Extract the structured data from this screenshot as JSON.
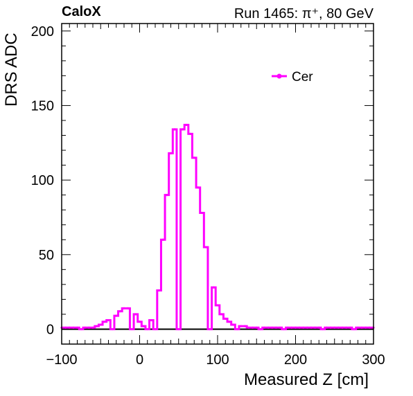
{
  "header": {
    "brand": "CaloX",
    "run_info": "Run 1465:   π⁺, 80 GeV"
  },
  "colors": {
    "series": "#ff00ff",
    "axis": "#000000",
    "zero_line": "#000000"
  },
  "chart_data": {
    "type": "line",
    "title": "",
    "xlabel": "Measured Z [cm]",
    "ylabel": "DRS ADC",
    "xlim": [
      -100,
      300
    ],
    "ylim": [
      -10,
      205
    ],
    "x_ticks": [
      -100,
      0,
      100,
      200,
      300
    ],
    "x_tick_labels": [
      "−100",
      "0",
      "100",
      "200",
      "300"
    ],
    "y_ticks": [
      0,
      50,
      100,
      150,
      200
    ],
    "y_tick_labels": [
      "0",
      "50",
      "100",
      "150",
      "200"
    ],
    "grid": false,
    "legend": {
      "position": "top-right"
    },
    "series": [
      {
        "name": "Cer",
        "step": true,
        "x": [
          -100,
          -95,
          -90,
          -85,
          -80,
          -75,
          -70,
          -65,
          -60,
          -55,
          -50,
          -45,
          -40,
          -35,
          -30,
          -25,
          -20,
          -15,
          -10,
          -5,
          0,
          5,
          10,
          15,
          20,
          25,
          30,
          35,
          40,
          45,
          50,
          55,
          60,
          65,
          70,
          75,
          80,
          85,
          90,
          95,
          100,
          105,
          110,
          115,
          120,
          125,
          130,
          135,
          140,
          145,
          150,
          155,
          160,
          165,
          170,
          175,
          180,
          185,
          190,
          195,
          200,
          205,
          210,
          215,
          220,
          225,
          230,
          235,
          240,
          245,
          250,
          255,
          260,
          265,
          270,
          275,
          280,
          285,
          290,
          295,
          300
        ],
        "y": [
          1,
          1,
          1,
          1,
          1,
          0,
          1,
          1,
          1,
          2,
          3,
          5,
          6,
          0,
          9,
          12,
          14,
          14,
          0,
          10,
          5,
          2,
          0,
          6,
          0,
          26,
          60,
          90,
          118,
          134,
          0,
          134,
          137,
          131,
          115,
          95,
          78,
          55,
          0,
          28,
          16,
          10,
          7,
          5,
          3,
          0,
          2,
          2,
          1,
          1,
          1,
          0,
          1,
          1,
          1,
          1,
          1,
          0,
          1,
          1,
          1,
          1,
          1,
          1,
          1,
          1,
          1,
          0,
          1,
          1,
          1,
          1,
          1,
          1,
          1,
          0,
          1,
          1,
          1,
          1,
          1
        ]
      }
    ]
  }
}
